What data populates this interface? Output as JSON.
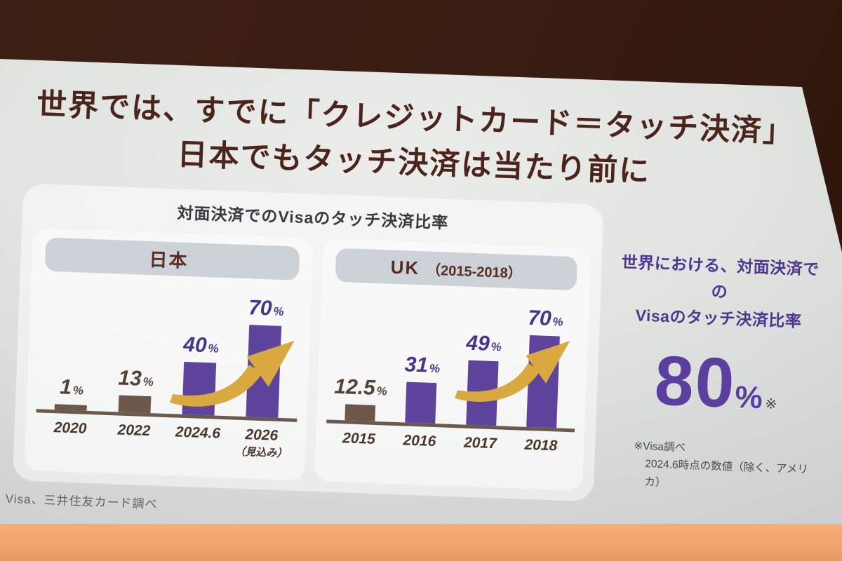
{
  "slide": {
    "title_line1": "世界では、すでに「クレジットカード＝タッチ決済」",
    "title_line2": "日本でもタッチ決済は当たり前に",
    "panel_title": "対面決済でのVisaのタッチ決済比率",
    "bottom_footnote": "※ Visa、三井住友カード調べ"
  },
  "right_summary": {
    "heading_line1": "世界における、対面決済での",
    "heading_line2": "Visaのタッチ決済比率",
    "value": "80",
    "unit": "%",
    "ref_mark": "※",
    "footnote_line1": "※Visa調べ",
    "footnote_line2": "2024.6時点の数値（除く、アメリカ）"
  },
  "colors": {
    "title_brown": "#4b241b",
    "bar_purple": "#5e449c",
    "bar_brown": "#6d574b",
    "label_purple": "#4a348a",
    "label_brown": "#554036",
    "axis_brown": "#6a594d",
    "arrow_gold": "#d9a83f",
    "accent_purple": "#5b3f9e",
    "floor_orange": "#f2a970"
  },
  "chart_data": [
    {
      "type": "bar",
      "title": "日本",
      "subtitle": "",
      "categories": [
        "2020",
        "2022",
        "2024.6",
        "2026"
      ],
      "category_notes": [
        "",
        "",
        "",
        "（見込み）"
      ],
      "values": [
        1,
        13,
        40,
        70
      ],
      "value_labels": [
        "1",
        "13",
        "40",
        "70"
      ],
      "unit": "%",
      "bar_colors": [
        "brown",
        "brown",
        "purple",
        "purple"
      ],
      "ylim": [
        0,
        75
      ],
      "grid": false,
      "annotation": "gold growth arrow rising from 3rd bar to 4th bar"
    },
    {
      "type": "bar",
      "title": "UK",
      "subtitle": "（2015-2018）",
      "categories": [
        "2015",
        "2016",
        "2017",
        "2018"
      ],
      "category_notes": [
        "",
        "",
        "",
        ""
      ],
      "values": [
        12.5,
        31,
        49,
        70
      ],
      "value_labels": [
        "12.5",
        "31",
        "49",
        "70"
      ],
      "unit": "%",
      "bar_colors": [
        "brown",
        "purple",
        "purple",
        "purple"
      ],
      "ylim": [
        0,
        75
      ],
      "grid": false,
      "annotation": "gold growth arrow rising from 3rd bar to 4th bar"
    }
  ]
}
